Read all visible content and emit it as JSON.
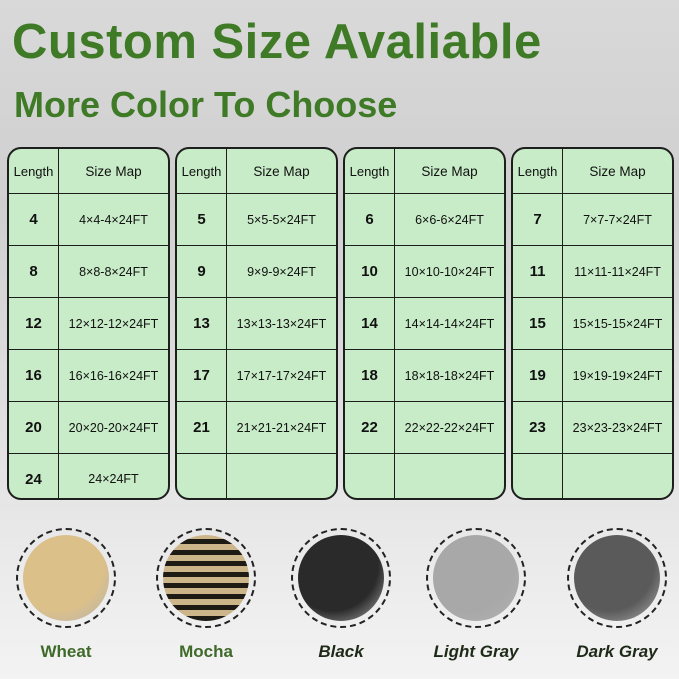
{
  "title": "Custom Size Avaliable",
  "subtitle": "More Color To Choose",
  "table_headers": {
    "length": "Length",
    "size_map": "Size Map"
  },
  "tables": [
    {
      "rows": [
        {
          "length": "4",
          "size": "4×4-4×24FT"
        },
        {
          "length": "8",
          "size": "8×8-8×24FT"
        },
        {
          "length": "12",
          "size": "12×12-12×24FT"
        },
        {
          "length": "16",
          "size": "16×16-16×24FT"
        },
        {
          "length": "20",
          "size": "20×20-20×24FT"
        },
        {
          "length": "24",
          "size": "24×24FT"
        }
      ]
    },
    {
      "rows": [
        {
          "length": "5",
          "size": "5×5-5×24FT"
        },
        {
          "length": "9",
          "size": "9×9-9×24FT"
        },
        {
          "length": "13",
          "size": "13×13-13×24FT"
        },
        {
          "length": "17",
          "size": "17×17-17×24FT"
        },
        {
          "length": "21",
          "size": "21×21-21×24FT"
        },
        {
          "length": "",
          "size": ""
        }
      ]
    },
    {
      "rows": [
        {
          "length": "6",
          "size": "6×6-6×24FT"
        },
        {
          "length": "10",
          "size": "10×10-10×24FT"
        },
        {
          "length": "14",
          "size": "14×14-14×24FT"
        },
        {
          "length": "18",
          "size": "18×18-18×24FT"
        },
        {
          "length": "22",
          "size": "22×22-22×24FT"
        },
        {
          "length": "",
          "size": ""
        }
      ]
    },
    {
      "rows": [
        {
          "length": "7",
          "size": "7×7-7×24FT"
        },
        {
          "length": "11",
          "size": "11×11-11×24FT"
        },
        {
          "length": "15",
          "size": "15×15-15×24FT"
        },
        {
          "length": "19",
          "size": "19×19-19×24FT"
        },
        {
          "length": "23",
          "size": "23×23-23×24FT"
        },
        {
          "length": "",
          "size": ""
        }
      ]
    }
  ],
  "colors": [
    {
      "name": "Wheat",
      "swatch": "#dcc08a"
    },
    {
      "name": "Mocha",
      "swatch": "#8a7454"
    },
    {
      "name": "Black",
      "swatch": "#2a2a2a"
    },
    {
      "name": "Light Gray",
      "swatch": "#a8a8a8"
    },
    {
      "name": "Dark Gray",
      "swatch": "#5a5a5a"
    }
  ]
}
